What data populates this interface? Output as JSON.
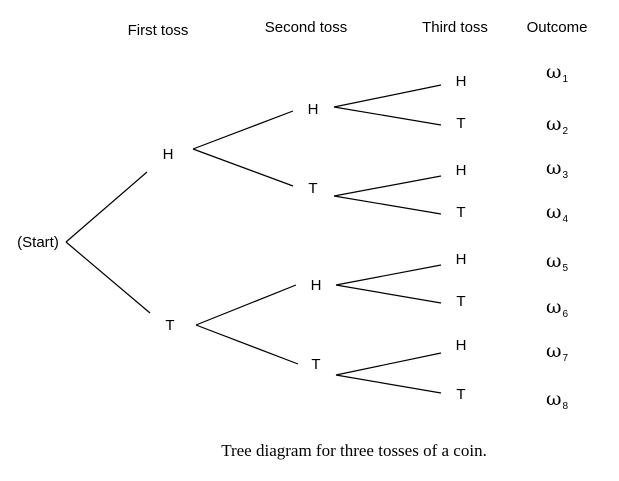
{
  "headers": {
    "first": "First toss",
    "second": "Second toss",
    "third": "Third toss",
    "outcome": "Outcome"
  },
  "start_label": "(Start)",
  "first_toss": [
    "H",
    "T"
  ],
  "second_toss": [
    "H",
    "T",
    "H",
    "T"
  ],
  "third_toss": [
    "H",
    "T",
    "H",
    "T",
    "H",
    "T",
    "H",
    "T"
  ],
  "outcomes": [
    {
      "symbol": "ω",
      "index": "1"
    },
    {
      "symbol": "ω",
      "index": "2"
    },
    {
      "symbol": "ω",
      "index": "3"
    },
    {
      "symbol": "ω",
      "index": "4"
    },
    {
      "symbol": "ω",
      "index": "5"
    },
    {
      "symbol": "ω",
      "index": "6"
    },
    {
      "symbol": "ω",
      "index": "7"
    },
    {
      "symbol": "ω",
      "index": "8"
    }
  ],
  "caption": "Tree diagram for three tosses of a coin."
}
